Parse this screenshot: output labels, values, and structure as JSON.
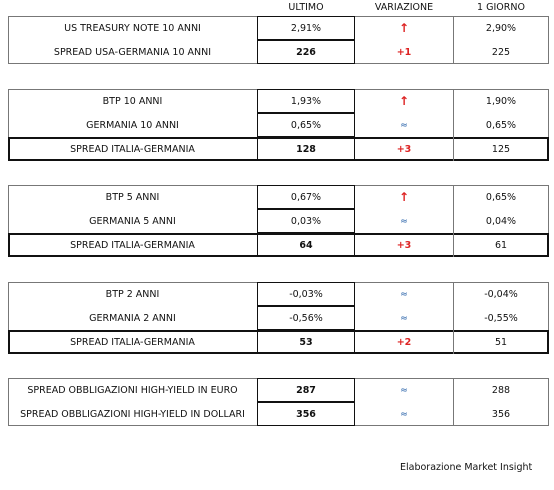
{
  "header": {
    "columns": [
      "ULTIMO",
      "VARIAZIONE",
      "1 GIORNO"
    ]
  },
  "groups": [
    {
      "rows": [
        {
          "label": "US TREASURY NOTE 10 ANNI",
          "ultimo": "2,91%",
          "variazione": "↑",
          "giorno": "2,90%"
        },
        {
          "label": "SPREAD USA-GERMANIA 10 ANNI",
          "ultimo": "226",
          "variazione": "+1",
          "giorno": "225"
        }
      ]
    },
    {
      "rows": [
        {
          "label": "BTP 10 ANNI",
          "ultimo": "1,93%",
          "variazione": "↑",
          "giorno": "1,90%"
        },
        {
          "label": "GERMANIA 10 ANNI",
          "ultimo": "0,65%",
          "variazione": "≈",
          "giorno": "0,65%"
        },
        {
          "label": "SPREAD ITALIA-GERMANIA",
          "ultimo": "128",
          "variazione": "+3",
          "giorno": "125"
        }
      ]
    },
    {
      "rows": [
        {
          "label": "BTP 5 ANNI",
          "ultimo": "0,67%",
          "variazione": "↑",
          "giorno": "0,65%"
        },
        {
          "label": "GERMANIA 5 ANNI",
          "ultimo": "0,03%",
          "variazione": "≈",
          "giorno": "0,04%"
        },
        {
          "label": "SPREAD ITALIA-GERMANIA",
          "ultimo": "64",
          "variazione": "+3",
          "giorno": "61"
        }
      ]
    },
    {
      "rows": [
        {
          "label": "BTP 2 ANNI",
          "ultimo": "-0,03%",
          "variazione": "≈",
          "giorno": "-0,04%"
        },
        {
          "label": "GERMANIA 2 ANNI",
          "ultimo": "-0,56%",
          "variazione": "≈",
          "giorno": "-0,55%"
        },
        {
          "label": "SPREAD ITALIA-GERMANIA",
          "ultimo": "53",
          "variazione": "+2",
          "giorno": "51"
        }
      ]
    },
    {
      "rows": [
        {
          "label": "SPREAD OBBLIGAZIONI HIGH-YIELD IN EURO",
          "ultimo": "287",
          "variazione": "≈",
          "giorno": "288"
        },
        {
          "label": "SPREAD OBBLIGAZIONI HIGH-YIELD IN DOLLARI",
          "ultimo": "356",
          "variazione": "≈",
          "giorno": "356"
        }
      ]
    }
  ],
  "footer": "Elaborazione Market Insight"
}
